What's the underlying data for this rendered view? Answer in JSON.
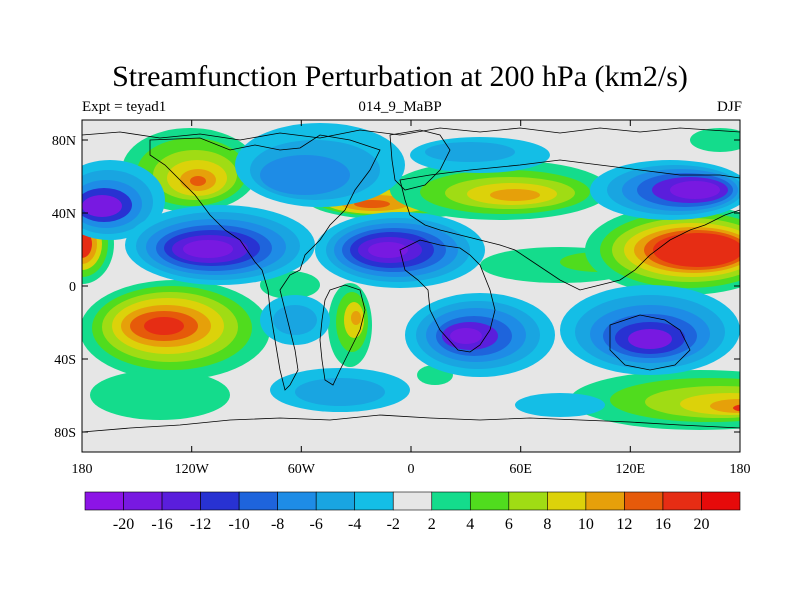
{
  "title": "Streamfunction Perturbation at 200 hPa (km2/s)",
  "left_label": "Expt = teyad1",
  "center_label": "014_9_MaBP",
  "right_label": "DJF",
  "lat_labels": [
    "80N",
    "40N",
    "0",
    "40S",
    "80S"
  ],
  "lon_labels": [
    "180",
    "120W",
    "60W",
    "0",
    "60E",
    "120E",
    "180"
  ],
  "colorbar": {
    "levels": [
      "-20",
      "-16",
      "-12",
      "-10",
      "-8",
      "-6",
      "-4",
      "-2",
      "2",
      "4",
      "6",
      "8",
      "10",
      "12",
      "16",
      "20"
    ],
    "colors": [
      "#8c14e6",
      "#7819e1",
      "#5a1edc",
      "#2832d2",
      "#1e64dc",
      "#1e8ce6",
      "#19a5e1",
      "#14bee6",
      "#e6e6e6",
      "#14dc8c",
      "#50dc1e",
      "#a0dc14",
      "#dcd20a",
      "#e6a00a",
      "#e65a0a",
      "#e62d14",
      "#e60a0a"
    ]
  },
  "colors": {
    "missing": "#e6e6e6",
    "coast": "#000000"
  }
}
